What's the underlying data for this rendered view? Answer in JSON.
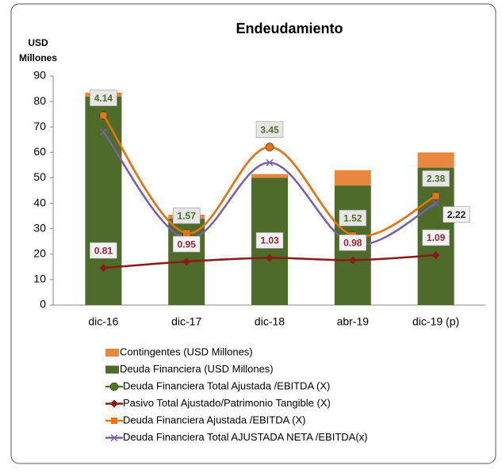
{
  "chart_data": {
    "type": "bar-line",
    "title": "Endeudamiento",
    "y_label": [
      "USD",
      "Millones"
    ],
    "categories": [
      "dic-16",
      "dic-17",
      "dic-18",
      "abr-19",
      "dic-19 (p)"
    ],
    "ylim": [
      0,
      90
    ],
    "yticks": [
      0,
      10,
      20,
      30,
      40,
      50,
      60,
      70,
      80,
      90
    ],
    "y2lim": [
      0,
      5
    ],
    "series": [
      {
        "name": "Contingentes (USD Millones)",
        "type": "bar",
        "stack_on": 1,
        "color": "#e8883e",
        "values": [
          1.5,
          1.5,
          1.5,
          6,
          6
        ]
      },
      {
        "name": "Deuda Financiera (USD Millones)",
        "type": "bar",
        "color": "#4e6b2a",
        "values": [
          82,
          34,
          50,
          47,
          54
        ]
      },
      {
        "name": "Deuda Financiera Total Ajustada /EBITDA (X)",
        "type": "line",
        "axis": "y2",
        "marker": "circle",
        "color": "#4f7a28",
        "data_labels": "all",
        "label_color": "#4f6b2a",
        "values": [
          4.14,
          1.57,
          3.45,
          1.52,
          2.38
        ]
      },
      {
        "name": "Pasivo Total Ajustado/Patrimonio Tangible (X)",
        "type": "line",
        "axis": "y2",
        "marker": "diamond",
        "color": "#8b1a1a",
        "data_labels": "all",
        "label_color": "#9b2335",
        "values": [
          0.81,
          0.95,
          1.03,
          0.98,
          1.09
        ]
      },
      {
        "name": "Deuda Financiera Ajustada /EBITDA (X)",
        "type": "line",
        "axis": "y2",
        "marker": "square",
        "color": "#e8730f",
        "data_labels": "none",
        "values": [
          4.14,
          1.57,
          3.45,
          1.52,
          2.38
        ]
      },
      {
        "name": "Deuda Financiera Total AJUSTADA NETA /EBITDA(x)",
        "type": "line",
        "axis": "y2",
        "marker": "x",
        "color": "#7b5fa8",
        "data_labels": "last",
        "label_color": "#222222",
        "values": [
          3.78,
          1.45,
          3.11,
          1.33,
          2.22
        ]
      }
    ]
  }
}
